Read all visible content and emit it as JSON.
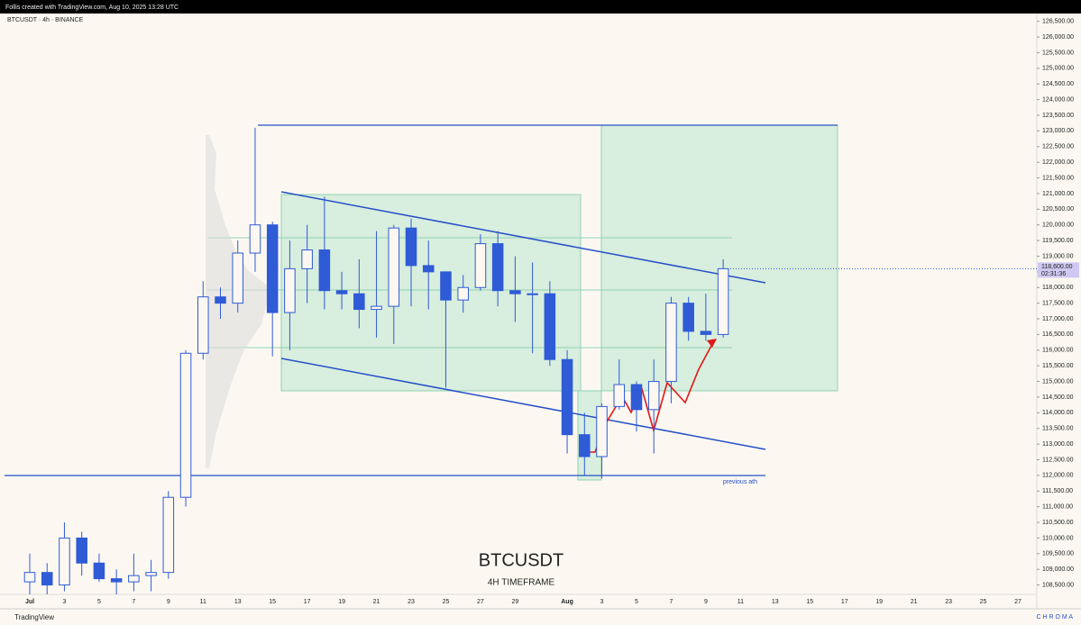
{
  "header": "Follis created with TradingView.com, Aug 10, 2025 13:28 UTC",
  "footer": {
    "brand": "TradingView",
    "watermark": "C H R O M A"
  },
  "chart_data": {
    "type": "candlestick",
    "symbol_label": "BTCUSDT · 4h · BINANCE",
    "title": "BTCUSDT",
    "subtitle": "4H TIMEFRAME",
    "annotation": "previous ath",
    "color": "#2f5bd6",
    "last_price": {
      "value": 118600,
      "label": "118,600.00"
    },
    "countdown": "02:31:36",
    "categories": [
      "Jul",
      null,
      "3",
      null,
      "5",
      null,
      "7",
      null,
      "9",
      null,
      "11",
      null,
      "13",
      null,
      "15",
      null,
      "17",
      null,
      "19",
      null,
      "21",
      null,
      "23",
      null,
      "25",
      null,
      "27",
      null,
      "29",
      null,
      null,
      "Aug",
      null,
      "3",
      null,
      "5",
      null,
      "7",
      null,
      "9",
      null,
      "11",
      null,
      "13",
      null,
      "15",
      null,
      "17",
      null,
      "19",
      null,
      "21",
      null,
      "23",
      null,
      "25",
      null,
      "27"
    ],
    "open": [
      108600,
      108900,
      108500,
      110000,
      109200,
      108700,
      108600,
      108800,
      108900,
      111300,
      115900,
      117700,
      117500,
      119100,
      120000,
      117200,
      118600,
      119200,
      117900,
      117800,
      117300,
      117400,
      119900,
      118700,
      118500,
      117600,
      118000,
      119400,
      117900,
      117800,
      117800,
      115700,
      113300,
      112600,
      114200,
      114900,
      114100,
      115000,
      117500,
      116600,
      116500,
      null,
      null,
      null,
      null,
      null,
      null,
      null,
      null,
      null,
      null,
      null,
      null,
      null,
      null,
      null,
      null,
      null
    ],
    "high": [
      109500,
      109200,
      110500,
      110200,
      109500,
      109000,
      109500,
      109300,
      111500,
      116000,
      118200,
      118000,
      119500,
      123100,
      120100,
      119500,
      120000,
      120900,
      118500,
      118900,
      119800,
      120000,
      120200,
      119500,
      118500,
      118400,
      119700,
      119800,
      119000,
      118800,
      118200,
      116000,
      114000,
      114300,
      115700,
      115000,
      115700,
      117700,
      117700,
      117800,
      118900,
      null,
      null,
      null,
      null,
      null,
      null,
      null,
      null,
      null,
      null,
      null,
      null,
      null,
      null,
      null,
      null,
      null
    ],
    "low": [
      108200,
      108200,
      108300,
      108800,
      108600,
      108200,
      108300,
      108300,
      108700,
      111000,
      115700,
      117000,
      117200,
      118500,
      115800,
      116000,
      117500,
      117300,
      117300,
      116700,
      116400,
      116200,
      117400,
      117300,
      114800,
      117200,
      117900,
      117400,
      116900,
      115900,
      115500,
      112700,
      112000,
      111900,
      114100,
      113400,
      112700,
      114300,
      116300,
      116300,
      116400,
      null,
      null,
      null,
      null,
      null,
      null,
      null,
      null,
      null,
      null,
      null,
      null,
      null,
      null,
      null,
      null,
      null
    ],
    "close": [
      108900,
      108500,
      110000,
      109200,
      108700,
      108600,
      108800,
      108900,
      111300,
      115900,
      117700,
      117500,
      119100,
      120000,
      117200,
      118600,
      119200,
      117900,
      117800,
      117300,
      117400,
      119900,
      118700,
      118500,
      117600,
      118000,
      119400,
      117900,
      117800,
      117800,
      115700,
      113300,
      112600,
      114200,
      114900,
      114100,
      115000,
      117500,
      116600,
      116500,
      118600,
      null,
      null,
      null,
      null,
      null,
      null,
      null,
      null,
      null,
      null,
      null,
      null,
      null,
      null,
      null,
      null,
      null
    ],
    "ylim": [
      108200,
      126750
    ],
    "yticks": [
      {
        "value": 108500,
        "label": "108,500.00"
      },
      {
        "value": 109000,
        "label": "109,000.00"
      },
      {
        "value": 109500,
        "label": "109,500.00"
      },
      {
        "value": 110000,
        "label": "110,000.00"
      },
      {
        "value": 110500,
        "label": "110,500.00"
      },
      {
        "value": 111000,
        "label": "111,000.00"
      },
      {
        "value": 111500,
        "label": "111,500.00"
      },
      {
        "value": 112000,
        "label": "112,000.00"
      },
      {
        "value": 112500,
        "label": "112,500.00"
      },
      {
        "value": 113000,
        "label": "113,000.00"
      },
      {
        "value": 113500,
        "label": "113,500.00"
      },
      {
        "value": 114000,
        "label": "114,000.00"
      },
      {
        "value": 114500,
        "label": "114,500.00"
      },
      {
        "value": 115000,
        "label": "115,000.00"
      },
      {
        "value": 115500,
        "label": "115,500.00"
      },
      {
        "value": 116000,
        "label": "116,000.00"
      },
      {
        "value": 116500,
        "label": "116,500.00"
      },
      {
        "value": 117000,
        "label": "117,000.00"
      },
      {
        "value": 117500,
        "label": "117,500.00"
      },
      {
        "value": 118000,
        "label": "118,000.00"
      },
      {
        "value": 118500,
        "label": "118,500.00"
      },
      {
        "value": 119000,
        "label": "119,000.00"
      },
      {
        "value": 119500,
        "label": "119,500.00"
      },
      {
        "value": 120000,
        "label": "120,000.00"
      },
      {
        "value": 120500,
        "label": "120,500.00"
      },
      {
        "value": 121000,
        "label": "121,000.00"
      },
      {
        "value": 121500,
        "label": "121,500.00"
      },
      {
        "value": 122000,
        "label": "122,000.00"
      },
      {
        "value": 122500,
        "label": "122,500.00"
      },
      {
        "value": 123000,
        "label": "123,000.00"
      },
      {
        "value": 123500,
        "label": "123,500.00"
      },
      {
        "value": 124000,
        "label": "124,000.00"
      },
      {
        "value": 124500,
        "label": "124,500.00"
      },
      {
        "value": 125000,
        "label": "125,000.00"
      },
      {
        "value": 125500,
        "label": "125,500.00"
      },
      {
        "value": 126000,
        "label": "126,000.00"
      },
      {
        "value": 126500,
        "label": "126,500.00"
      }
    ],
    "grid": false
  }
}
